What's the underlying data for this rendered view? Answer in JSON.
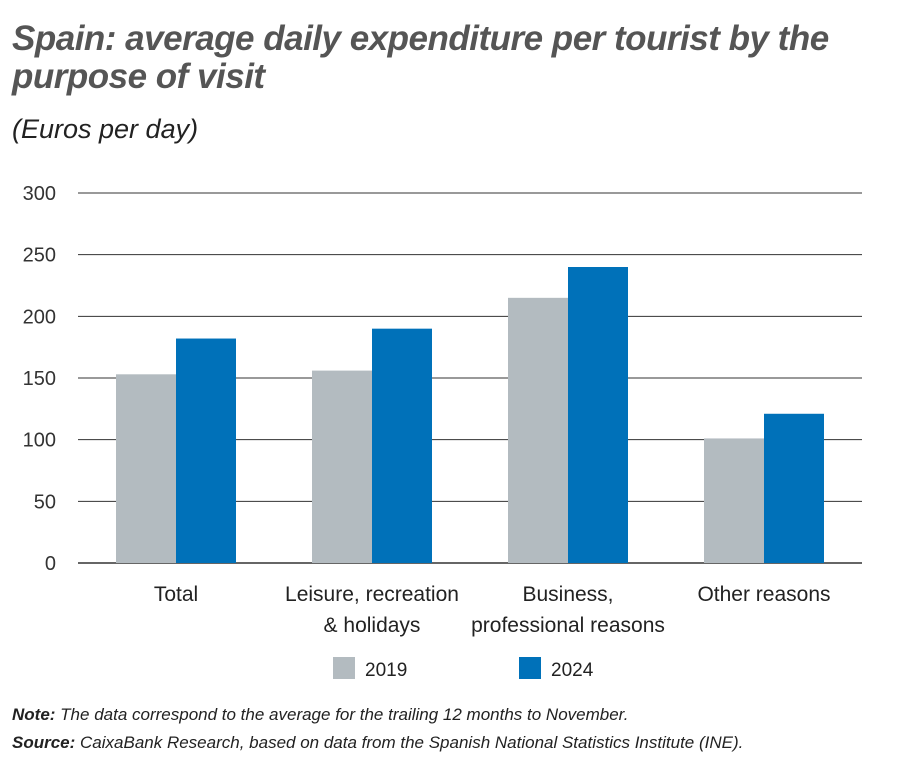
{
  "chart_data": {
    "type": "bar",
    "title": "Spain: average daily expenditure per tourist by the purpose of visit",
    "subtitle": "(Euros per day)",
    "categories": [
      [
        "Total"
      ],
      [
        "Leisure, recreation",
        "& holidays"
      ],
      [
        "Business,",
        "professional reasons"
      ],
      [
        "Other reasons"
      ]
    ],
    "series": [
      {
        "name": "2019",
        "color": "#b3bbc0",
        "values": [
          153,
          156,
          215,
          101
        ]
      },
      {
        "name": "2024",
        "color": "#0071b9",
        "values": [
          182,
          190,
          240,
          121
        ]
      }
    ],
    "ylim": [
      0,
      300
    ],
    "yticks": [
      0,
      50,
      100,
      150,
      200,
      250,
      300
    ],
    "grid": true,
    "legend": "bottom"
  },
  "note": {
    "label": "Note:",
    "text": " The data correspond to the average for the trailing 12 months to November."
  },
  "source": {
    "label": "Source:",
    "text": " CaixaBank Research, based on data from the Spanish National Statistics Institute (INE)."
  }
}
